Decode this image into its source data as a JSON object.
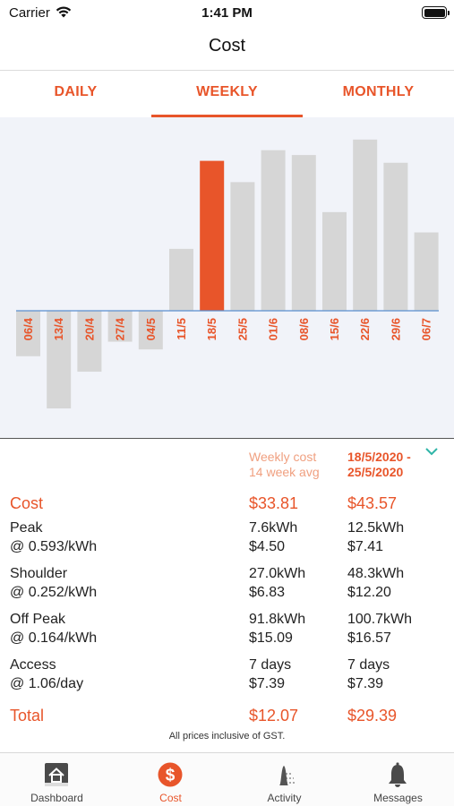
{
  "status": {
    "carrier": "Carrier",
    "time": "1:41 PM"
  },
  "nav": {
    "title": "Cost"
  },
  "tabs": [
    {
      "label": "DAILY",
      "active": false
    },
    {
      "label": "WEEKLY",
      "active": true
    },
    {
      "label": "MONTHLY",
      "active": false
    }
  ],
  "colors": {
    "accent": "#e8552a",
    "bar": "#d6d6d6",
    "chart_bg": "#f1f3f9",
    "baseline": "#5a8fd0",
    "teal": "#2fb5a8"
  },
  "chart_data": {
    "type": "bar",
    "categories": [
      "06/4",
      "13/4",
      "20/4",
      "27/4",
      "04/5",
      "11/5",
      "18/5",
      "25/5",
      "01/6",
      "08/6",
      "15/6",
      "22/6",
      "29/6",
      "06/7"
    ],
    "values": [
      -4.7,
      -10.1,
      -6.3,
      -3.2,
      -4.0,
      6.4,
      15.5,
      13.3,
      16.6,
      16.1,
      10.2,
      17.7,
      15.3,
      8.1
    ],
    "selected_index": 6,
    "ylim": [
      -13,
      20
    ],
    "title": "",
    "xlabel": "",
    "ylabel": ""
  },
  "summary": {
    "header": {
      "col_a_line1": "Weekly cost",
      "col_a_line2": "14 week avg",
      "col_b_line1": "18/5/2020 -",
      "col_b_line2": "25/5/2020"
    },
    "cost": {
      "label": "Cost",
      "a": "$33.81",
      "b": "$43.57"
    },
    "peak": {
      "label": "Peak",
      "rate": "@ 0.593/kWh",
      "a1": "7.6kWh",
      "a2": "$4.50",
      "b1": "12.5kWh",
      "b2": "$7.41"
    },
    "shoulder": {
      "label": "Shoulder",
      "rate": "@ 0.252/kWh",
      "a1": "27.0kWh",
      "a2": "$6.83",
      "b1": "48.3kWh",
      "b2": "$12.20"
    },
    "offpeak": {
      "label": "Off Peak",
      "rate": "@ 0.164/kWh",
      "a1": "91.8kWh",
      "a2": "$15.09",
      "b1": "100.7kWh",
      "b2": "$16.57"
    },
    "access": {
      "label": "Access",
      "rate": "@ 1.06/day",
      "a1": "7 days",
      "a2": "$7.39",
      "b1": "7 days",
      "b2": "$7.39"
    },
    "total": {
      "label": "Total",
      "a": "$12.07",
      "b": "$29.39"
    },
    "note": "All prices inclusive of GST."
  },
  "tabbar": [
    {
      "label": "Dashboard",
      "icon": "home-icon",
      "active": false
    },
    {
      "label": "Cost",
      "icon": "dollar-icon",
      "active": true
    },
    {
      "label": "Activity",
      "icon": "activity-icon",
      "active": false
    },
    {
      "label": "Messages",
      "icon": "bell-icon",
      "active": false
    }
  ]
}
